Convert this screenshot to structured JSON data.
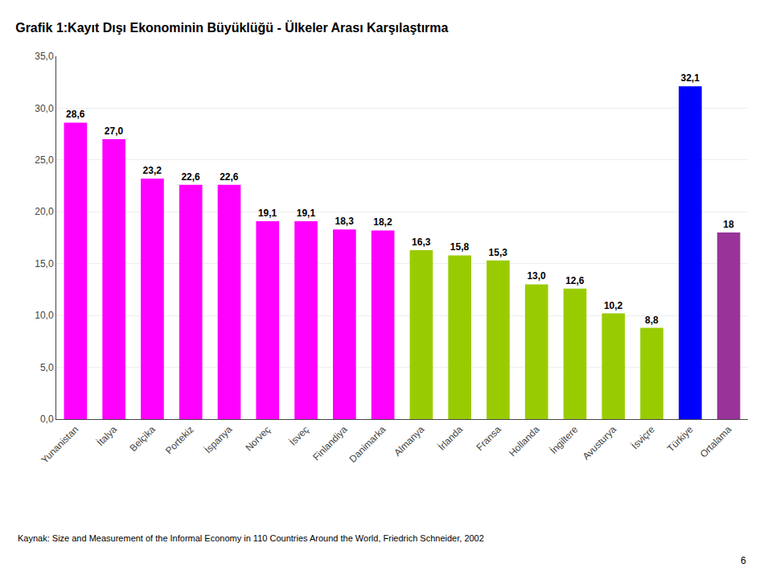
{
  "chart_data": {
    "type": "bar",
    "title": "Grafik 1:Kayıt Dışı Ekonominin Büyüklüğü - Ülkeler Arası Karşılaştırma",
    "categories": [
      "Yunanistan",
      "İtalya",
      "Belçika",
      "Portekiz",
      "İspanya",
      "Norveç",
      "İsveç",
      "Finlandiya",
      "Danimarka",
      "Almanya",
      "İrlanda",
      "Fransa",
      "Hollanda",
      "İngiltere",
      "Avusturya",
      "İsviçre",
      "Türkiye",
      "Ortalama"
    ],
    "values": [
      28.6,
      27.0,
      23.2,
      22.6,
      22.6,
      19.1,
      19.1,
      18.3,
      18.2,
      16.3,
      15.8,
      15.3,
      13.0,
      12.6,
      10.2,
      8.8,
      32.1,
      18.0
    ],
    "value_labels": [
      "28,6",
      "27,0",
      "23,2",
      "22,6",
      "22,6",
      "19,1",
      "19,1",
      "18,3",
      "18,2",
      "16,3",
      "15,8",
      "15,3",
      "13,0",
      "12,6",
      "10,2",
      "8,8",
      "32,1",
      "18"
    ],
    "colors": [
      "#FF00FF",
      "#FF00FF",
      "#FF00FF",
      "#FF00FF",
      "#FF00FF",
      "#FF00FF",
      "#FF00FF",
      "#FF00FF",
      "#FF00FF",
      "#99CC00",
      "#99CC00",
      "#99CC00",
      "#99CC00",
      "#99CC00",
      "#99CC00",
      "#99CC00",
      "#0000FF",
      "#993399"
    ],
    "data_labels": true,
    "ylim": [
      0,
      35
    ],
    "yticks": [
      {
        "value": 0,
        "label": "0,0"
      },
      {
        "value": 5,
        "label": "5,0"
      },
      {
        "value": 10,
        "label": "10,0"
      },
      {
        "value": 15,
        "label": "15,0"
      },
      {
        "value": 20,
        "label": "20,0"
      },
      {
        "value": 25,
        "label": "25,0"
      },
      {
        "value": 30,
        "label": "30,0"
      },
      {
        "value": 35,
        "label": "35,0"
      }
    ],
    "grid": true,
    "annotations": [
      "Kaynak: Size and Measurement of the Informal Economy in 110 Countries Around the World, Friedrich Schneider, 2002",
      "6"
    ]
  }
}
